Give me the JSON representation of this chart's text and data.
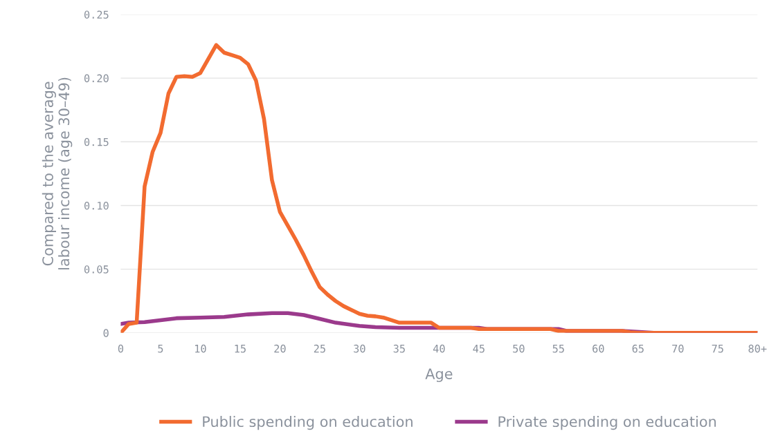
{
  "chart_data": {
    "type": "line",
    "xlabel": "Age",
    "ylabel": "Compared to the average\nlabour income (age 30–49)",
    "xlim": [
      0,
      80
    ],
    "xticks": [
      0,
      5,
      10,
      15,
      20,
      25,
      30,
      35,
      40,
      45,
      50,
      55,
      60,
      65,
      70,
      75,
      {
        "value": 80,
        "label": "80+"
      }
    ],
    "ylim": [
      0,
      0.25
    ],
    "yticks": [
      0,
      0.05,
      {
        "value": 0.1,
        "label": "0.10"
      },
      0.15,
      {
        "value": 0.2,
        "label": "0.20"
      },
      0.25
    ],
    "grid": "y",
    "legend": "bottom",
    "marker": "none",
    "line_style": "solid",
    "series": [
      {
        "name": "Public spending on education",
        "color": "#f26b30",
        "x": [
          0,
          1,
          2,
          3,
          4,
          5,
          6,
          7,
          8,
          9,
          10,
          11,
          12,
          13,
          14,
          15,
          16,
          17,
          18,
          19,
          20,
          21,
          22,
          23,
          24,
          25,
          26,
          27,
          28,
          29,
          30,
          31,
          32,
          33,
          34,
          35,
          39,
          40,
          44,
          45,
          53,
          54,
          55,
          63,
          64,
          65,
          80
        ],
        "values": [
          0,
          0.007,
          0.008,
          0.115,
          0.142,
          0.157,
          0.188,
          0.201,
          0.2015,
          0.201,
          0.204,
          0.215,
          0.226,
          0.22,
          0.218,
          0.216,
          0.211,
          0.198,
          0.168,
          0.12,
          0.095,
          0.084,
          0.073,
          0.061,
          0.048,
          0.036,
          0.03,
          0.025,
          0.021,
          0.018,
          0.015,
          0.0135,
          0.013,
          0.012,
          0.01,
          0.008,
          0.008,
          0.004,
          0.004,
          0.003,
          0.003,
          0.003,
          0.0015,
          0.0015,
          0.0005,
          0,
          0
        ]
      },
      {
        "name": "Private spending on education",
        "color": "#9b3a8c",
        "x": [
          0,
          1,
          3,
          5,
          7,
          10,
          13,
          16,
          19,
          21,
          23,
          25,
          27,
          30,
          32,
          35,
          40,
          45,
          46,
          55,
          56,
          63,
          67,
          80
        ],
        "values": [
          0.007,
          0.008,
          0.0085,
          0.01,
          0.0115,
          0.012,
          0.0125,
          0.0145,
          0.0155,
          0.0155,
          0.014,
          0.011,
          0.008,
          0.0055,
          0.0045,
          0.004,
          0.004,
          0.004,
          0.003,
          0.003,
          0.0015,
          0.0015,
          0,
          0
        ]
      }
    ]
  }
}
